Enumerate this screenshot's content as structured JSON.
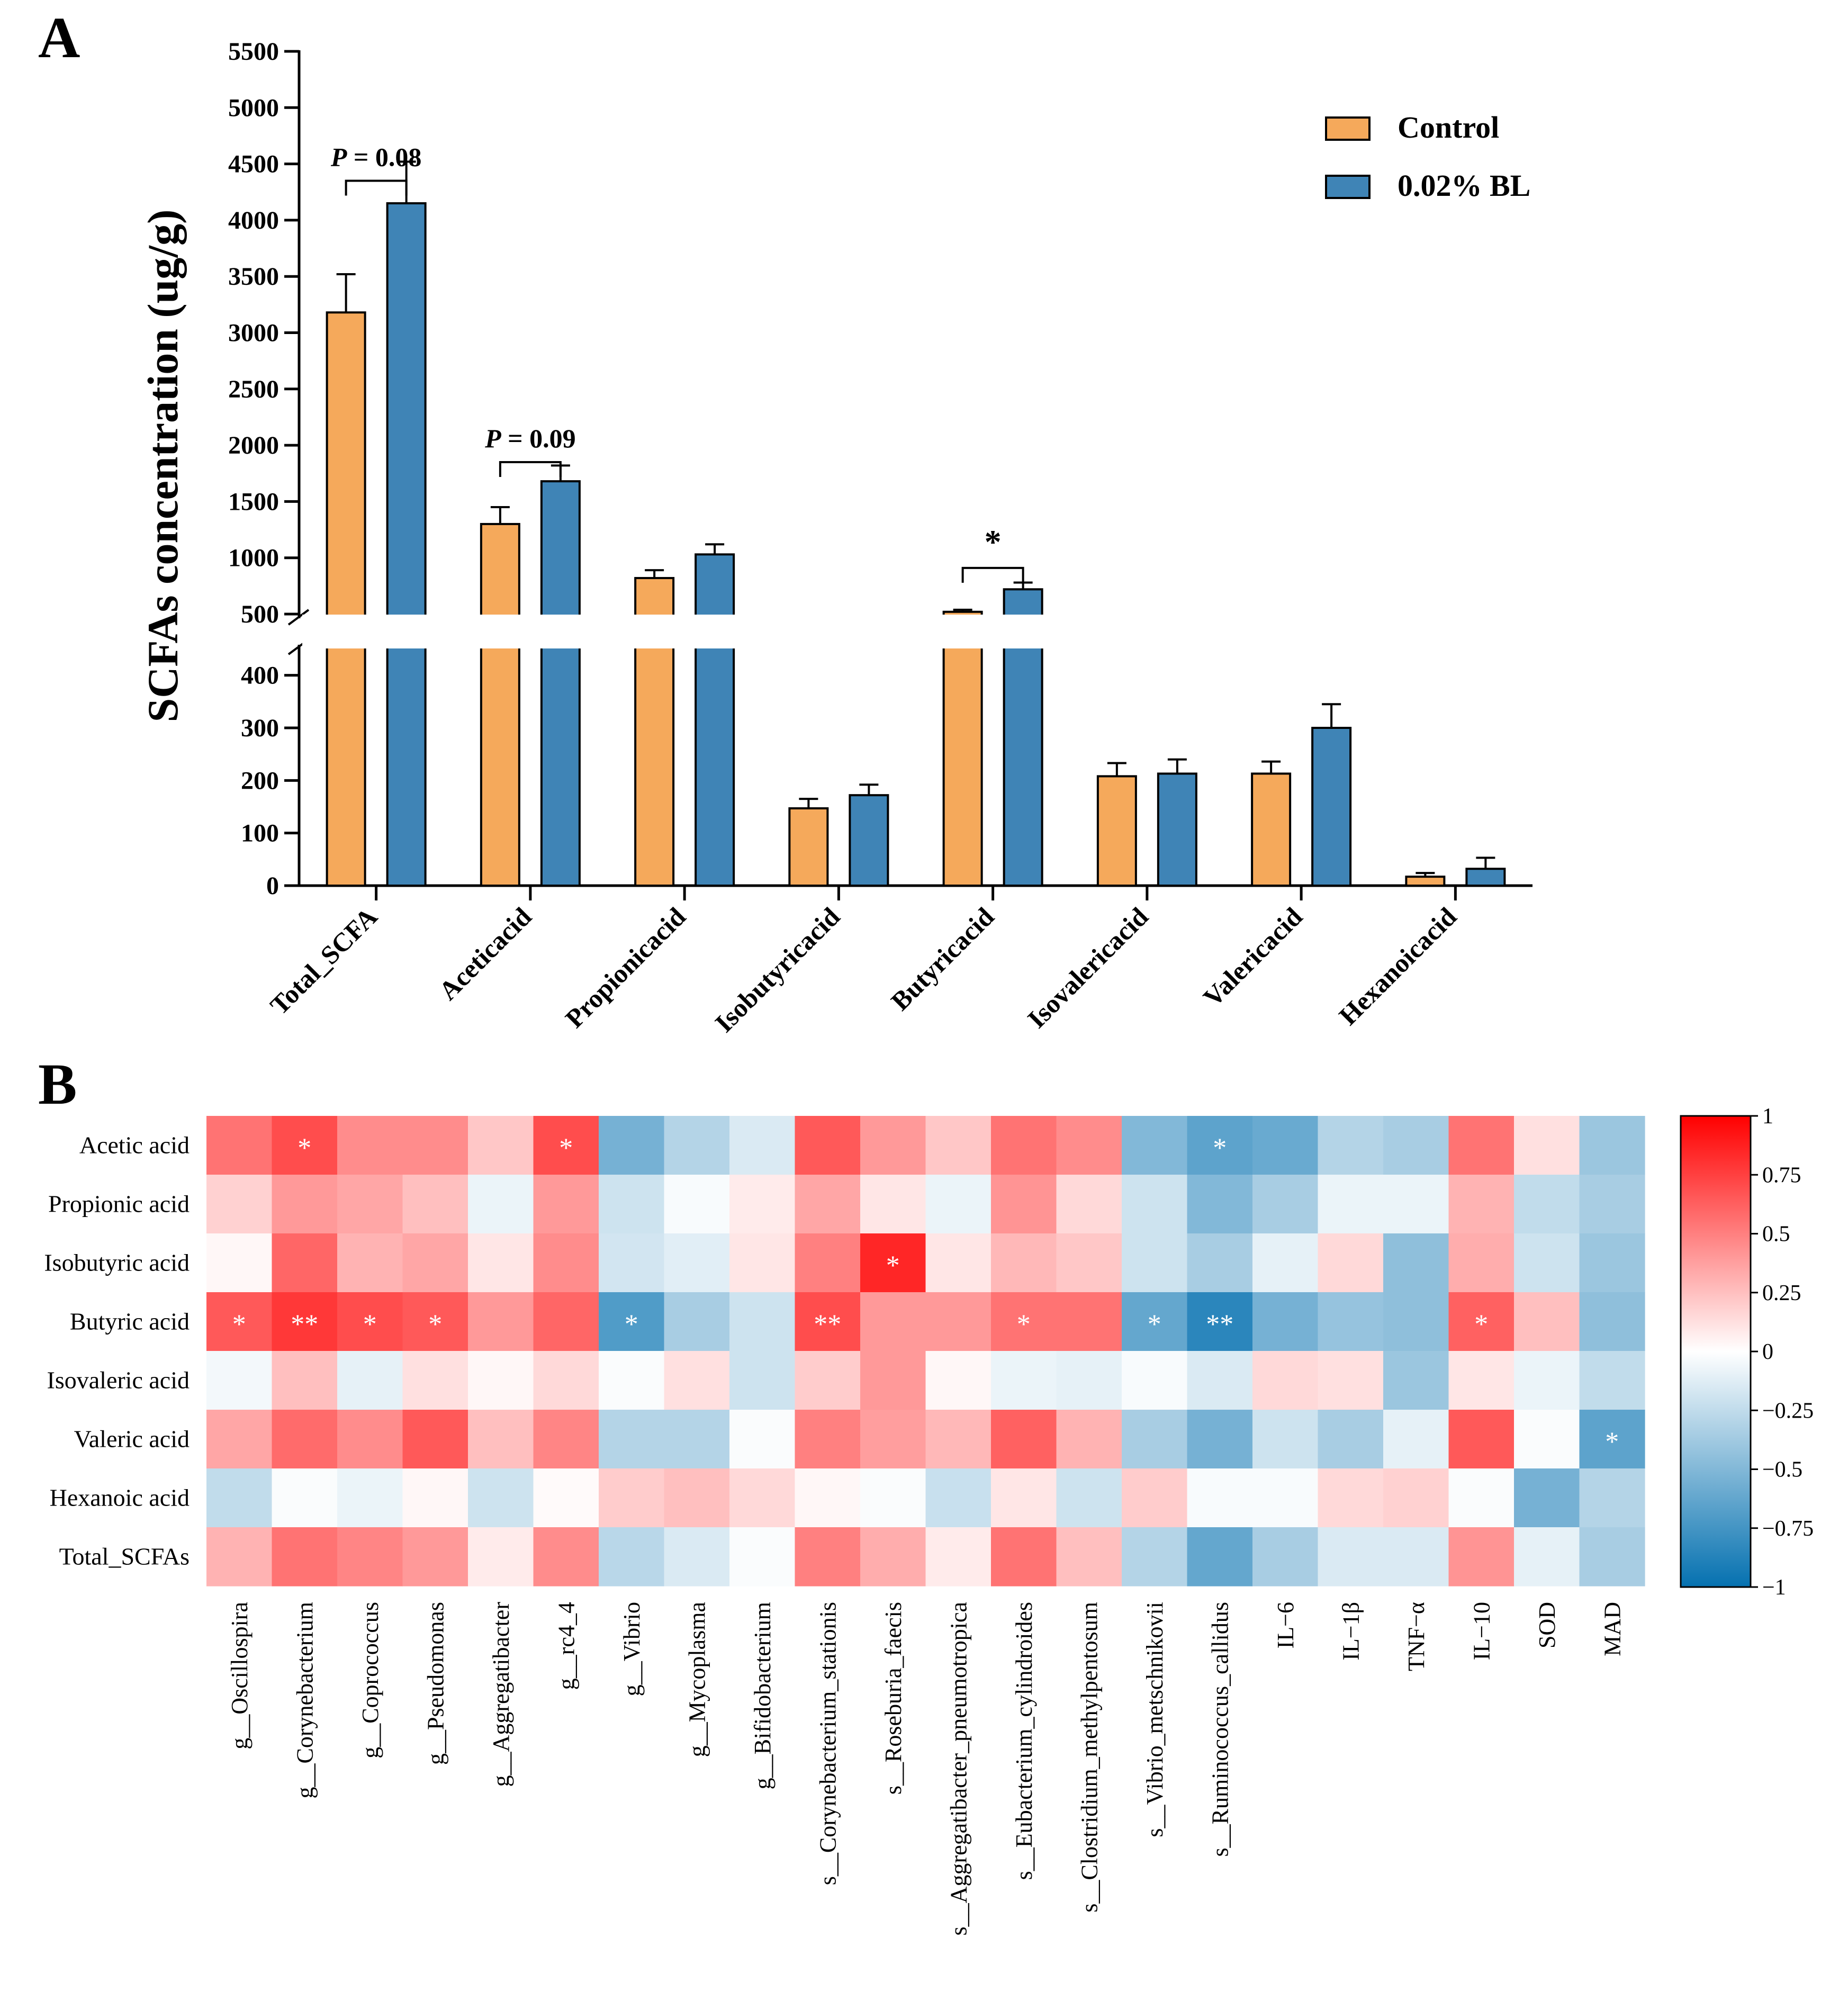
{
  "panel_labels": {
    "a": "A",
    "b": "B"
  },
  "chart_data": [
    {
      "type": "bar",
      "panel": "A",
      "ylabel": "SCFAs concentration (ug/g)",
      "xlabel": "",
      "categories": [
        "Total_SCFA",
        "Aceticacid",
        "Propionicacid",
        "Isobutyricacid",
        "Butyricacid",
        "Isovalericacid",
        "Valericacid",
        "Hexanoicacid"
      ],
      "series": [
        {
          "name": "Control",
          "color": "#F5A95B",
          "values": [
            3180,
            1300,
            820,
            147,
            520,
            208,
            213,
            17
          ],
          "errors": [
            340,
            150,
            70,
            18,
            18,
            25,
            23,
            7
          ]
        },
        {
          "name": "0.02% BL",
          "color": "#3F84B6",
          "values": [
            4150,
            1680,
            1030,
            172,
            720,
            213,
            300,
            32
          ],
          "errors": [
            370,
            140,
            90,
            20,
            60,
            27,
            45,
            21
          ]
        }
      ],
      "y_axis_break": {
        "lower_range": [
          0,
          450
        ],
        "upper_range": [
          500,
          5500
        ]
      },
      "lower_ticks": [
        0,
        100,
        200,
        300,
        400
      ],
      "upper_ticks": [
        500,
        1000,
        1500,
        2000,
        2500,
        3000,
        3500,
        4000,
        4500,
        5000,
        5500
      ],
      "tick_labels_lower": [
        "0",
        "100",
        "200",
        "300",
        "400"
      ],
      "tick_labels_upper": [
        "500",
        "1000",
        "1500",
        "2000",
        "2500",
        "3000",
        "3500",
        "4000",
        "4500",
        "5000",
        "5500"
      ],
      "legend": {
        "placement": "top-right",
        "entries": [
          "Control",
          "0.02% BL"
        ]
      },
      "annotations": [
        {
          "category": "Total_SCFA",
          "p": "P",
          "rest": " = 0.08",
          "bracket_y": 4350
        },
        {
          "category": "Aceticacid",
          "p": "P",
          "rest": " = 0.09",
          "bracket_y": 1850
        },
        {
          "category": "Butyricacid",
          "p": "",
          "rest": "*",
          "bracket_y": 910
        }
      ]
    },
    {
      "type": "heatmap",
      "panel": "B",
      "rows": [
        "Acetic acid",
        "Propionic acid",
        "Isobutyric acid",
        "Butyric acid",
        "Isovaleric acid",
        "Valeric acid",
        "Hexanoic acid",
        "Total_SCFAs"
      ],
      "columns": [
        "g__Oscillospira",
        "g__Corynebacterium",
        "g__Coprococcus",
        "g__Pseudomonas",
        "g__Aggregatibacter",
        "g__rc4_4",
        "g__Vibrio",
        "g__Mycoplasma",
        "g__Bifidobacterium",
        "s__Corynebacterium_stationis",
        "s__Roseburia_faecis",
        "s__Aggregatibacter_pneumotropica",
        "s__Eubacterium_cylindroides",
        "s__Clostridium_methylpentosum",
        "s__Vibrio_metschnikovii",
        "s__Ruminococcus_callidus",
        "IL−6",
        "IL−1β",
        "TNF−α",
        "IL−10",
        "SOD",
        "MAD"
      ],
      "values": [
        [
          0.55,
          0.7,
          0.45,
          0.45,
          0.22,
          0.7,
          -0.55,
          -0.3,
          -0.15,
          0.65,
          0.4,
          0.22,
          0.55,
          0.45,
          -0.5,
          -0.65,
          -0.6,
          -0.3,
          -0.35,
          0.55,
          0.12,
          -0.4
        ],
        [
          0.18,
          0.4,
          0.35,
          0.25,
          -0.08,
          0.4,
          -0.2,
          -0.03,
          0.08,
          0.35,
          0.1,
          -0.08,
          0.42,
          0.15,
          -0.2,
          -0.5,
          -0.35,
          -0.08,
          -0.08,
          0.3,
          -0.25,
          -0.35
        ],
        [
          0.03,
          0.6,
          0.3,
          0.35,
          0.1,
          0.45,
          -0.18,
          -0.12,
          0.1,
          0.5,
          0.85,
          0.1,
          0.28,
          0.22,
          -0.2,
          -0.35,
          -0.1,
          0.15,
          -0.45,
          0.32,
          -0.2,
          -0.4
        ],
        [
          0.65,
          0.78,
          0.7,
          0.65,
          0.4,
          0.6,
          -0.7,
          -0.35,
          -0.2,
          0.7,
          0.4,
          0.4,
          0.55,
          0.55,
          -0.62,
          -0.85,
          -0.55,
          -0.42,
          -0.45,
          0.62,
          0.25,
          -0.45
        ],
        [
          -0.05,
          0.25,
          -0.1,
          0.12,
          0.03,
          0.15,
          -0.02,
          0.12,
          -0.2,
          0.2,
          0.4,
          0.03,
          -0.08,
          -0.1,
          -0.03,
          -0.15,
          0.15,
          0.12,
          -0.4,
          0.1,
          -0.08,
          -0.25
        ],
        [
          0.35,
          0.58,
          0.45,
          0.65,
          0.25,
          0.48,
          -0.3,
          -0.3,
          -0.02,
          0.5,
          0.38,
          0.28,
          0.62,
          0.3,
          -0.35,
          -0.55,
          -0.2,
          -0.35,
          -0.1,
          0.65,
          -0.02,
          -0.65
        ],
        [
          -0.25,
          -0.02,
          -0.08,
          0.03,
          -0.2,
          0.02,
          0.2,
          0.25,
          0.15,
          0.03,
          -0.02,
          -0.22,
          0.1,
          -0.2,
          0.2,
          -0.03,
          -0.03,
          0.15,
          0.18,
          -0.02,
          -0.55,
          -0.3
        ],
        [
          0.3,
          0.55,
          0.48,
          0.4,
          0.08,
          0.45,
          -0.28,
          -0.15,
          -0.02,
          0.5,
          0.32,
          0.08,
          0.55,
          0.25,
          -0.3,
          -0.62,
          -0.35,
          -0.15,
          -0.15,
          0.42,
          -0.1,
          -0.35
        ]
      ],
      "significance": [
        {
          "row": 0,
          "col": 1,
          "mark": "*"
        },
        {
          "row": 0,
          "col": 5,
          "mark": "*"
        },
        {
          "row": 0,
          "col": 15,
          "mark": "*"
        },
        {
          "row": 2,
          "col": 10,
          "mark": "*"
        },
        {
          "row": 3,
          "col": 0,
          "mark": "*"
        },
        {
          "row": 3,
          "col": 1,
          "mark": "**"
        },
        {
          "row": 3,
          "col": 2,
          "mark": "*"
        },
        {
          "row": 3,
          "col": 3,
          "mark": "*"
        },
        {
          "row": 3,
          "col": 6,
          "mark": "*"
        },
        {
          "row": 3,
          "col": 9,
          "mark": "**"
        },
        {
          "row": 3,
          "col": 12,
          "mark": "*"
        },
        {
          "row": 3,
          "col": 14,
          "mark": "*"
        },
        {
          "row": 3,
          "col": 15,
          "mark": "**"
        },
        {
          "row": 3,
          "col": 19,
          "mark": "*"
        },
        {
          "row": 5,
          "col": 21,
          "mark": "*"
        }
      ],
      "colorbar": {
        "range": [
          -1,
          1
        ],
        "ticks": [
          1,
          0.75,
          0.5,
          0.25,
          0,
          -0.25,
          -0.5,
          -0.75,
          -1
        ],
        "tick_labels": [
          "1",
          "0.75",
          "0.5",
          "0.25",
          "0",
          "−0.25",
          "−0.5",
          "−0.75",
          "−1"
        ],
        "colors": {
          "neg": "#0571B0",
          "mid": "#FFFFFF",
          "pos": "#FF0000"
        }
      }
    }
  ]
}
